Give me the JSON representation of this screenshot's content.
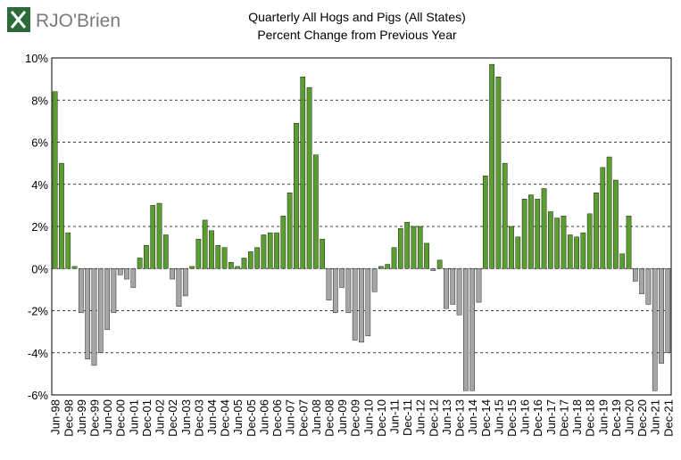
{
  "logo": "RJO'Brien",
  "chart_data": {
    "type": "bar",
    "title": "Quarterly All Hogs and Pigs (All States)",
    "subtitle": "Percent Change from Previous Year",
    "categories": [
      "Jun-98",
      null,
      "Dec-98",
      null,
      "Jun-99",
      null,
      "Dec-99",
      null,
      "Jun-00",
      null,
      "Dec-00",
      null,
      "Jun-01",
      null,
      "Dec-01",
      null,
      "Jun-02",
      null,
      "Dec-02",
      null,
      "Jun-03",
      null,
      "Dec-03",
      null,
      "Jun-04",
      null,
      "Dec-04",
      null,
      "Jun-05",
      null,
      "Dec-05",
      null,
      "Jun-06",
      null,
      "Dec-06",
      null,
      "Jun-07",
      null,
      "Dec-07",
      null,
      "Jun-08",
      null,
      "Dec-08",
      null,
      "Jun-09",
      null,
      "Dec-09",
      null,
      "Jun-10",
      null,
      "Dec-10",
      null,
      "Jun-11",
      null,
      "Dec-11",
      null,
      "Jun-12",
      null,
      "Dec-12",
      null,
      "Jun-13",
      null,
      "Dec-13",
      null,
      "Jun-14",
      null,
      "Dec-14",
      null,
      "Jun-15",
      null,
      "Dec-15",
      null,
      "Jun-16",
      null,
      "Dec-16",
      null,
      "Jun-17",
      null,
      "Dec-17",
      null,
      "Jun-18",
      null,
      "Dec-18",
      null,
      "Jun-19",
      null,
      "Dec-19",
      null,
      "Jun-20",
      null,
      "Dec-20",
      null,
      "Jun-21",
      null,
      "Dec-21"
    ],
    "values": [
      8.4,
      5.0,
      1.7,
      0.1,
      -2.1,
      -4.3,
      -4.6,
      -4.0,
      -2.9,
      -2.1,
      -0.3,
      -0.5,
      -0.9,
      0.5,
      1.1,
      3.0,
      3.1,
      1.6,
      -0.5,
      -1.8,
      -1.3,
      0.1,
      1.4,
      2.3,
      1.8,
      1.1,
      1.0,
      0.3,
      0.1,
      0.5,
      0.8,
      1.0,
      1.6,
      1.7,
      1.7,
      2.5,
      3.6,
      6.9,
      9.1,
      8.6,
      5.4,
      1.4,
      -1.5,
      -2.1,
      -0.9,
      -2.1,
      -3.4,
      -3.5,
      -3.2,
      -1.1,
      0.1,
      0.2,
      1.0,
      1.9,
      2.2,
      2.0,
      2.0,
      1.2,
      -0.1,
      0.4,
      -1.9,
      -1.7,
      -2.2,
      -5.8,
      -5.8,
      -1.6,
      4.4,
      9.7,
      9.1,
      5.0,
      2.0,
      1.5,
      3.3,
      3.5,
      3.3,
      3.8,
      2.7,
      2.4,
      2.5,
      1.6,
      1.5,
      1.7,
      2.6,
      3.6,
      4.8,
      5.3,
      4.2,
      0.7,
      2.5,
      -0.6,
      -1.2,
      -1.7,
      -5.8,
      -4.5,
      -4.0
    ],
    "positive_color": "#5a9e2f",
    "negative_color": "#a6a6a6",
    "ylim": [
      -6,
      10
    ],
    "yticks": [
      {
        "value": -6,
        "label": "-6%"
      },
      {
        "value": -4,
        "label": "-4%"
      },
      {
        "value": -2,
        "label": "-2%"
      },
      {
        "value": 0,
        "label": "0%"
      },
      {
        "value": 2,
        "label": "2%"
      },
      {
        "value": 4,
        "label": "4%"
      },
      {
        "value": 6,
        "label": "6%"
      },
      {
        "value": 8,
        "label": "8%"
      },
      {
        "value": 10,
        "label": "10%"
      }
    ],
    "grid": true
  }
}
